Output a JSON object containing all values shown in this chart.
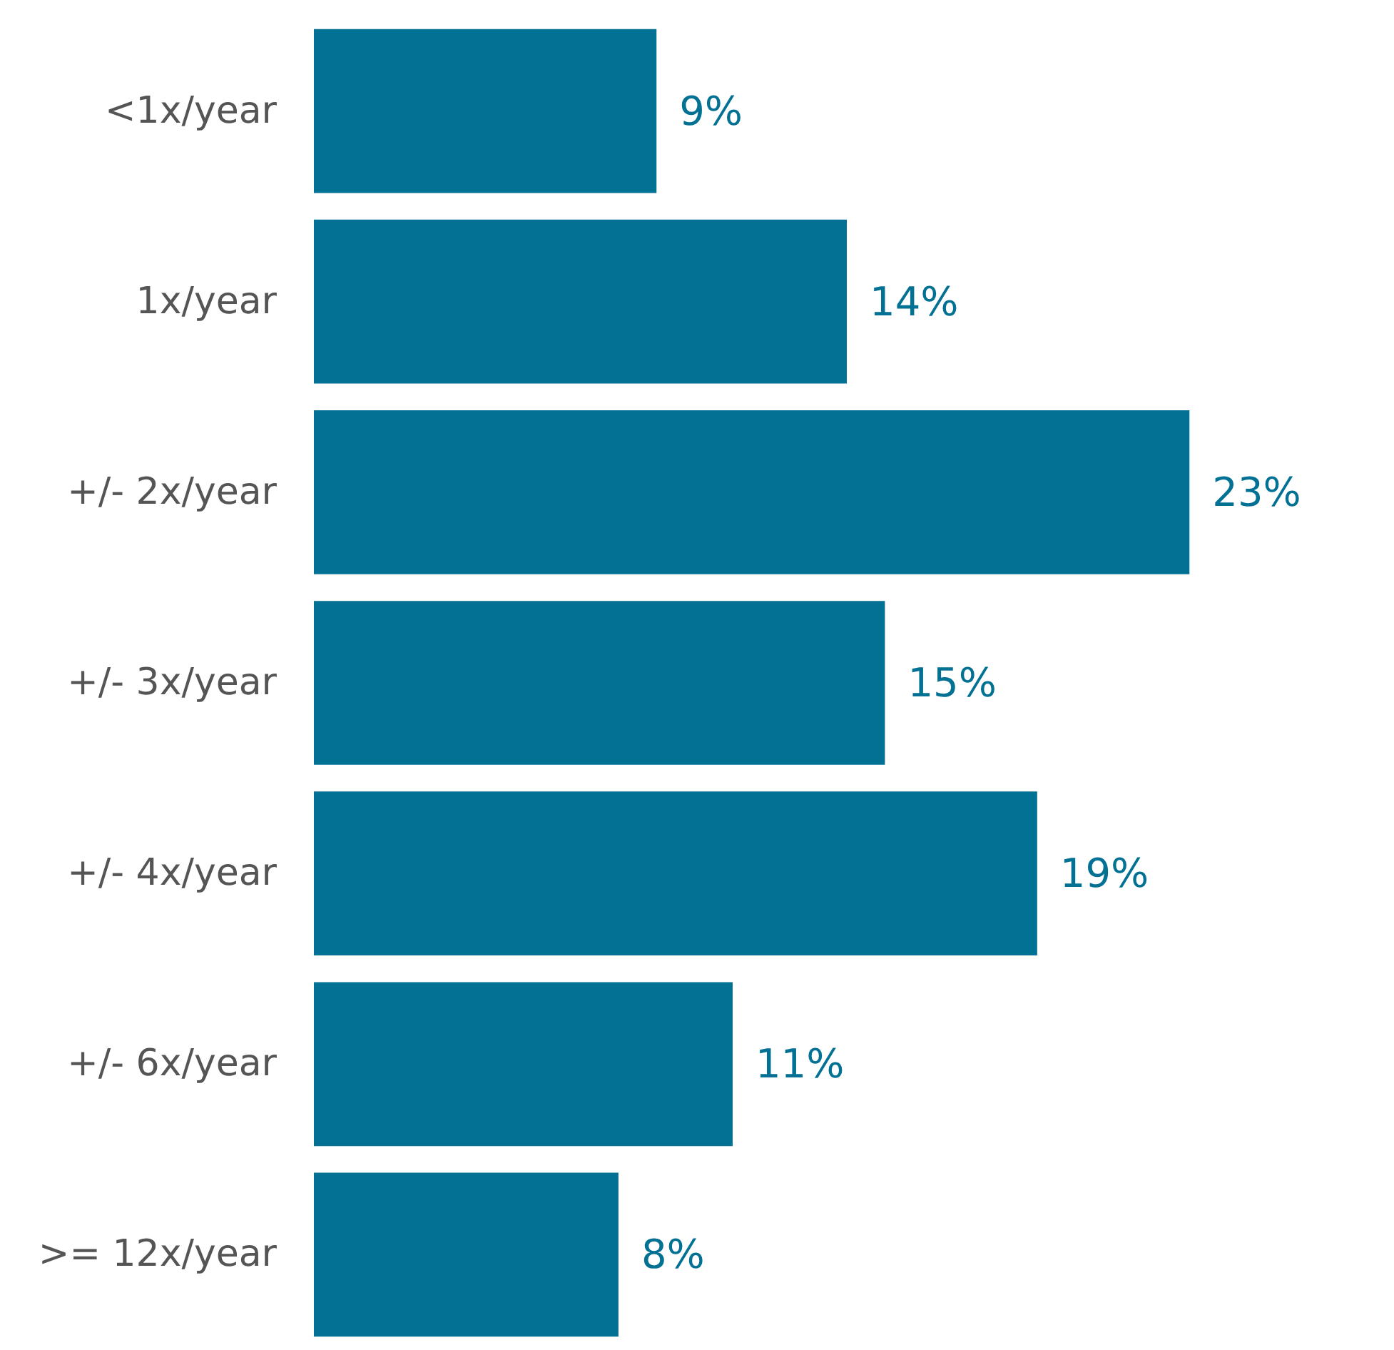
{
  "chart_data": {
    "type": "bar",
    "orientation": "horizontal",
    "categories": [
      "<1x/year",
      "1x/year",
      "+/- 2x/year",
      "+/- 3x/year",
      "+/- 4x/year",
      "+/- 6x/year",
      ">= 12x/year"
    ],
    "values": [
      9,
      14,
      23,
      15,
      19,
      11,
      8
    ],
    "value_labels": [
      "9%",
      "14%",
      "23%",
      "15%",
      "19%",
      "11%",
      "8%"
    ],
    "color": "#037193",
    "tick_labels": "y"
  }
}
